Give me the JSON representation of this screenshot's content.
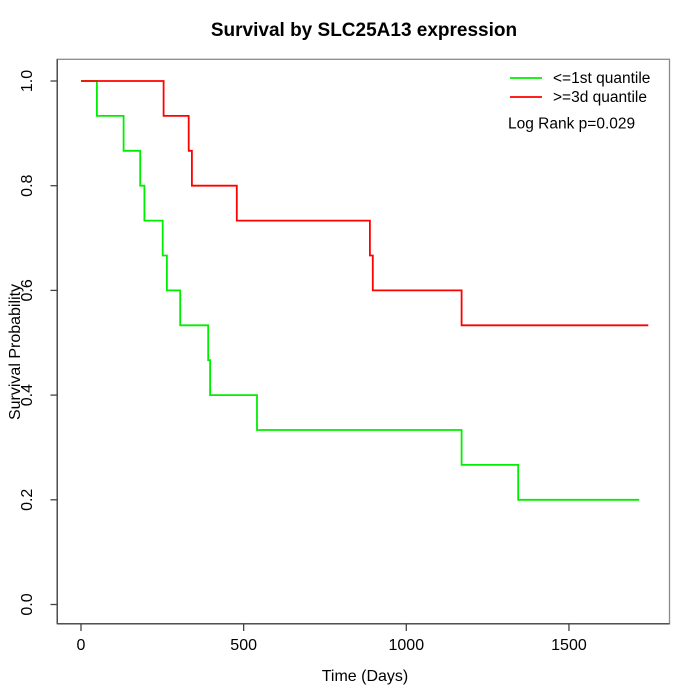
{
  "window": {
    "background_color": "#FFFFFF"
  },
  "colors": {
    "plot_border": "#8A8A8A",
    "axis_line": "#444444",
    "tick_text": "#000000",
    "title_text": "#000000",
    "series_low": "#00EE00",
    "series_high": "#FF0000"
  },
  "chart_data": {
    "type": "line",
    "subtype": "kaplan-meier-step",
    "title": "Survival by SLC25A13 expression",
    "xlabel": "Time (Days)",
    "ylabel": "Survival Probability",
    "xlim": [
      0,
      1810
    ],
    "ylim": [
      0.0,
      1.0
    ],
    "xticks": [
      0,
      500,
      1000,
      1500
    ],
    "xtick_labels": [
      "0",
      "500",
      "1000",
      "1500"
    ],
    "yticks": [
      0.0,
      0.2,
      0.4,
      0.6,
      0.8,
      1.0
    ],
    "ytick_labels": [
      "0.0",
      "0.2",
      "0.4",
      "0.6",
      "0.8",
      "1.0"
    ],
    "grid": false,
    "legend_position": "top-right",
    "annotation": "Log Rank p=0.029",
    "series": [
      {
        "name": "<=1st quantile",
        "color": "#00EE00",
        "steps": [
          [
            0,
            1.0
          ],
          [
            49,
            0.9333
          ],
          [
            131,
            0.8667
          ],
          [
            182,
            0.8
          ],
          [
            195,
            0.7333
          ],
          [
            251,
            0.6667
          ],
          [
            264,
            0.6
          ],
          [
            305,
            0.5333
          ],
          [
            391,
            0.4667
          ],
          [
            397,
            0.4
          ],
          [
            541,
            0.3333
          ],
          [
            1170,
            0.2667
          ],
          [
            1344,
            0.2
          ]
        ],
        "end_time": 1716
      },
      {
        "name": ">=3d quantile",
        "color": "#FF0000",
        "steps": [
          [
            0,
            1.0
          ],
          [
            254,
            0.9333
          ],
          [
            331,
            0.8667
          ],
          [
            341,
            0.8
          ],
          [
            479,
            0.7333
          ],
          [
            888,
            0.6667
          ],
          [
            897,
            0.6
          ],
          [
            1170,
            0.5333
          ]
        ],
        "end_time": 1744
      }
    ]
  }
}
